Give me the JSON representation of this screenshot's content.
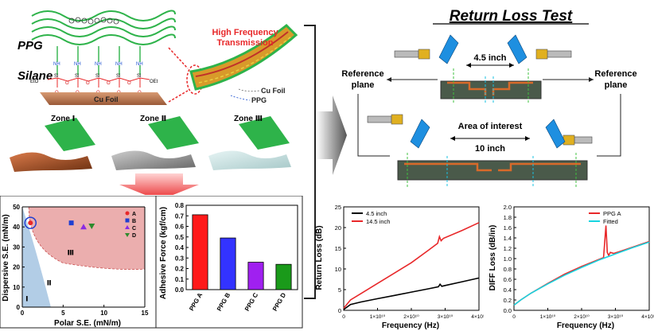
{
  "schematic": {
    "ppg_label": "PPG",
    "silane_label": "Silane",
    "cu_foil_label": "Cu Foil",
    "hf_title_line1": "High Frequency",
    "hf_title_line2": "Transmission",
    "cable_cu_foil": "Cu Foil",
    "cable_ppg": "PPG",
    "chem": {
      "nh": "NH",
      "o": "O",
      "si": "Si",
      "eto": "EtO",
      "oet": "OEt"
    },
    "zones": [
      "Zone Ⅰ",
      "Zone Ⅱ",
      "Zone Ⅲ"
    ],
    "colors": {
      "accent_red": "#e8282a",
      "copper": "#b8734a",
      "board_green": "#2eb34a"
    }
  },
  "return_loss_setup": {
    "title": "Return Loss Test",
    "short_length": "4.5 inch",
    "long_length": "10 inch",
    "ref_left": [
      "Reference",
      "plane"
    ],
    "ref_right": [
      "Reference",
      "plane"
    ],
    "area": "Area of interest"
  },
  "surface_energy_chart": {
    "type": "scatter",
    "xlabel": "Polar S.E. (mN/m)",
    "ylabel": "Dispersive S.E. (mN/m)",
    "xlim": [
      0,
      15
    ],
    "ylim": [
      0,
      50
    ],
    "xticks": [
      0,
      5,
      10,
      15
    ],
    "yticks": [
      0,
      10,
      20,
      30,
      40,
      50
    ],
    "zone_labels": [
      "Ⅰ",
      "Ⅱ",
      "Ⅲ"
    ],
    "series": [
      {
        "name": "A",
        "x": 1.0,
        "y": 42,
        "color": "#e8282a",
        "marker": "circle"
      },
      {
        "name": "B",
        "x": 6.0,
        "y": 42,
        "color": "#1f3fd1",
        "marker": "square"
      },
      {
        "name": "C",
        "x": 7.5,
        "y": 40,
        "color": "#8a2be2",
        "marker": "triangle-up"
      },
      {
        "name": "D",
        "x": 8.5,
        "y": 40.5,
        "color": "#2d8a2d",
        "marker": "triangle-down"
      }
    ]
  },
  "adhesive_chart": {
    "type": "bar",
    "ylabel": "Adhesive Force (kgf/cm)",
    "ylim": [
      0,
      0.8
    ],
    "yticks": [
      "0.0",
      "0.1",
      "0.2",
      "0.3",
      "0.4",
      "0.5",
      "0.6",
      "0.7",
      "0.8"
    ],
    "categories": [
      "PPG A",
      "PPG B",
      "PPG C",
      "PPG D"
    ],
    "values": [
      0.71,
      0.49,
      0.26,
      0.24
    ],
    "colors": [
      "#ff1a1a",
      "#3333ff",
      "#a020f0",
      "#1a9a1a"
    ]
  },
  "return_loss_chart": {
    "type": "line",
    "xlabel": "Frequency (Hz)",
    "ylabel": "Return Loss (dB)",
    "xlim": [
      0,
      40000000000.0
    ],
    "ylim": [
      0,
      25
    ],
    "xticks": [
      "0",
      "1×10¹⁰",
      "2×10¹⁰",
      "3×10¹⁰",
      "4×10¹⁰"
    ],
    "yticks": [
      "0",
      "5",
      "10",
      "15",
      "20",
      "25"
    ],
    "series": [
      {
        "name": "4.5 inch",
        "color": "#000000",
        "x": [
          0,
          2000000000.0,
          5000000000.0,
          10000000000.0,
          15000000000.0,
          20000000000.0,
          25000000000.0,
          28000000000.0,
          28500000000.0,
          29000000000.0,
          30000000000.0,
          35000000000.0,
          40000000000.0
        ],
        "y": [
          0.2,
          1.4,
          2.0,
          2.8,
          3.6,
          4.4,
          5.2,
          5.7,
          6.3,
          5.8,
          6.0,
          6.9,
          7.8
        ]
      },
      {
        "name": "14.5 inch",
        "color": "#e8282a",
        "x": [
          0,
          2000000000.0,
          5000000000.0,
          10000000000.0,
          15000000000.0,
          20000000000.0,
          25000000000.0,
          27800000000.0,
          28300000000.0,
          28800000000.0,
          29500000000.0,
          35000000000.0,
          40000000000.0
        ],
        "y": [
          0.5,
          2.5,
          4.0,
          6.5,
          9.0,
          11.5,
          14.5,
          16.2,
          17.8,
          16.8,
          17.4,
          19.3,
          21.2
        ]
      }
    ]
  },
  "diff_loss_chart": {
    "type": "line",
    "xlabel": "Frequency (Hz)",
    "ylabel": "DIFF Loss (dB/in)",
    "xlim": [
      0,
      40000000000.0
    ],
    "ylim": [
      0,
      2.0
    ],
    "xticks": [
      "0",
      "1×10¹⁰",
      "2×10¹⁰",
      "3×10¹⁰",
      "4×10¹⁰"
    ],
    "yticks": [
      "0.0",
      "0.2",
      "0.4",
      "0.6",
      "0.8",
      "1.0",
      "1.2",
      "1.4",
      "1.6",
      "1.8",
      "2.0"
    ],
    "series": [
      {
        "name": "PPG A",
        "color": "#e8282a",
        "x": [
          0,
          2000000000.0,
          5000000000.0,
          10000000000.0,
          15000000000.0,
          20000000000.0,
          25000000000.0,
          26500000000.0,
          27200000000.0,
          27600000000.0,
          28000000000.0,
          28500000000.0,
          29500000000.0,
          30500000000.0,
          35000000000.0,
          40000000000.0
        ],
        "y": [
          0.1,
          0.2,
          0.33,
          0.52,
          0.7,
          0.85,
          0.98,
          1.02,
          1.64,
          1.12,
          1.06,
          1.12,
          1.1,
          1.12,
          1.22,
          1.33
        ]
      },
      {
        "name": "Fitted",
        "color": "#17d4e0",
        "x": [
          0,
          2000000000.0,
          5000000000.0,
          10000000000.0,
          15000000000.0,
          20000000000.0,
          25000000000.0,
          30000000000.0,
          35000000000.0,
          40000000000.0
        ],
        "y": [
          0.1,
          0.2,
          0.33,
          0.51,
          0.68,
          0.83,
          0.97,
          1.09,
          1.21,
          1.32
        ]
      }
    ]
  }
}
